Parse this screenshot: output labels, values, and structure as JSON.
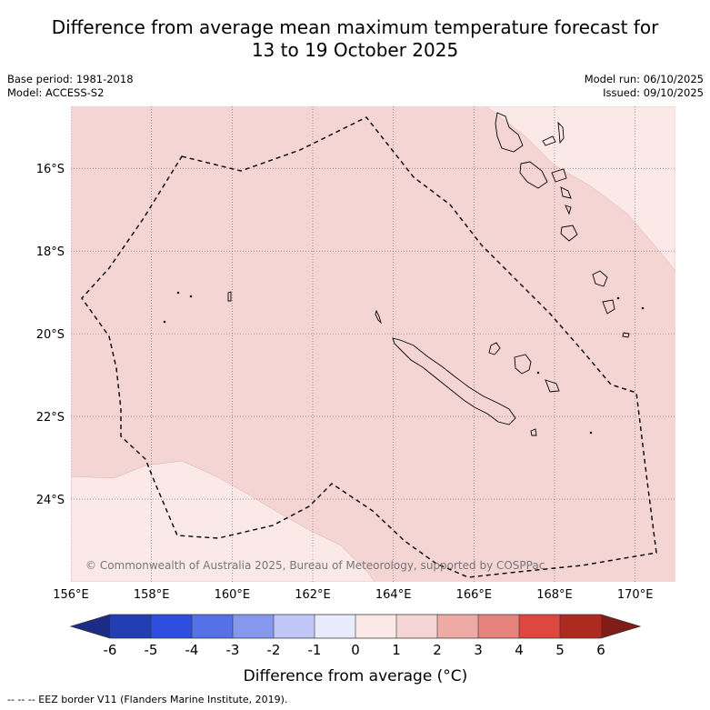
{
  "title": {
    "line1": "Difference from average mean maximum temperature forecast for",
    "line2": "13 to 19 October 2025"
  },
  "meta": {
    "base_period": "Base period: 1981-2018",
    "model": "Model: ACCESS-S2",
    "model_run": "Model run: 06/10/2025",
    "issued": "Issued: 09/10/2025"
  },
  "map": {
    "lon_range": [
      156,
      171
    ],
    "lat_range": [
      -26.0,
      -14.5
    ],
    "x_ticks": [
      {
        "value": 156,
        "label": "156°E"
      },
      {
        "value": 158,
        "label": "158°E"
      },
      {
        "value": 160,
        "label": "160°E"
      },
      {
        "value": 162,
        "label": "162°E"
      },
      {
        "value": 164,
        "label": "164°E"
      },
      {
        "value": 166,
        "label": "166°E"
      },
      {
        "value": 168,
        "label": "168°E"
      },
      {
        "value": 170,
        "label": "170°E"
      }
    ],
    "y_ticks": [
      {
        "value": -16,
        "label": "16°S"
      },
      {
        "value": -18,
        "label": "18°S"
      },
      {
        "value": -20,
        "label": "20°S"
      },
      {
        "value": -22,
        "label": "22°S"
      },
      {
        "value": -24,
        "label": "24°S"
      }
    ],
    "base_anomaly_class": "1 to 2",
    "low_anomaly_class": "0 to 1",
    "colors": {
      "anomaly_1_2": "#f5d5d3",
      "anomaly_0_1": "#fbe9e7",
      "grid": "#666666",
      "coast": "#000000"
    },
    "copyright": "© Commonwealth of Australia 2025, Bureau of Meteorology, supported by COSPPac"
  },
  "colorbar": {
    "title": "Difference from average (°C)",
    "labels": [
      "-6",
      "-5",
      "-4",
      "-3",
      "-2",
      "-1",
      "0",
      "1",
      "2",
      "3",
      "4",
      "5",
      "6"
    ],
    "colors": [
      "#213fb2",
      "#2e4ee0",
      "#5671e8",
      "#8697ee",
      "#c0c6f5",
      "#e7ebfb",
      "#fbe9e7",
      "#f5d5d3",
      "#eeaba6",
      "#e7837c",
      "#dd4940",
      "#ad2a21"
    ],
    "under_color": "#1c2c85",
    "over_color": "#801d16"
  },
  "footer": "--  --  -- EEZ border V11 (Flanders Marine Institute, 2019)."
}
